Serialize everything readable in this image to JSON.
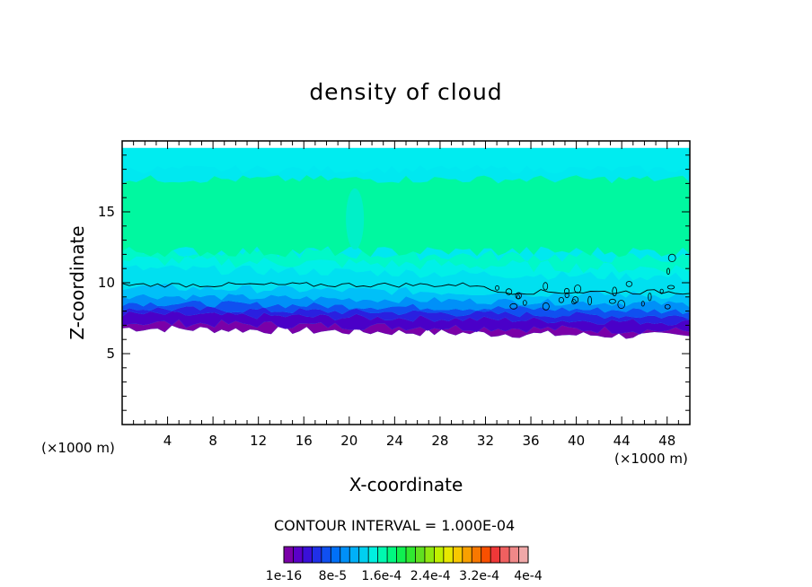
{
  "chart_data": {
    "type": "heatmap",
    "title": "density of cloud",
    "xlabel": "X-coordinate",
    "ylabel": "Z-coordinate",
    "x_unit_left": "(×1000 m)",
    "x_unit_right": "(×1000 m)",
    "xlim": [
      0,
      50
    ],
    "ylim": [
      0,
      20
    ],
    "x_ticks": [
      "4",
      "8",
      "12",
      "16",
      "20",
      "24",
      "28",
      "32",
      "36",
      "40",
      "44",
      "48"
    ],
    "y_ticks": [
      "5",
      "10",
      "15"
    ],
    "contour_interval": "CONTOUR INTERVAL = 1.000E-04",
    "colorbar": {
      "labels": [
        "1e-16",
        "8e-5",
        "1.6e-4",
        "2.4e-4",
        "3.2e-4",
        "4e-4"
      ],
      "colors": [
        "#7a00a8",
        "#5a00c8",
        "#3a10d8",
        "#2030e8",
        "#1050f0",
        "#0070f8",
        "#0090f8",
        "#00b0f8",
        "#00d0f0",
        "#00f0e0",
        "#00f8b0",
        "#00f880",
        "#10f050",
        "#30e830",
        "#60e020",
        "#90e810",
        "#c0f000",
        "#e8e800",
        "#f8c800",
        "#f8a000",
        "#f87800",
        "#f85000",
        "#f03838",
        "#f06060",
        "#f08888",
        "#f0a8a8"
      ]
    },
    "profile": {
      "cloud_base_z": [
        7.0,
        7.5
      ],
      "cloud_top_z": 19.5,
      "max_density_band_z": [
        12,
        17.5
      ],
      "contour_line_z": [
        9.3,
        10.0
      ]
    }
  }
}
